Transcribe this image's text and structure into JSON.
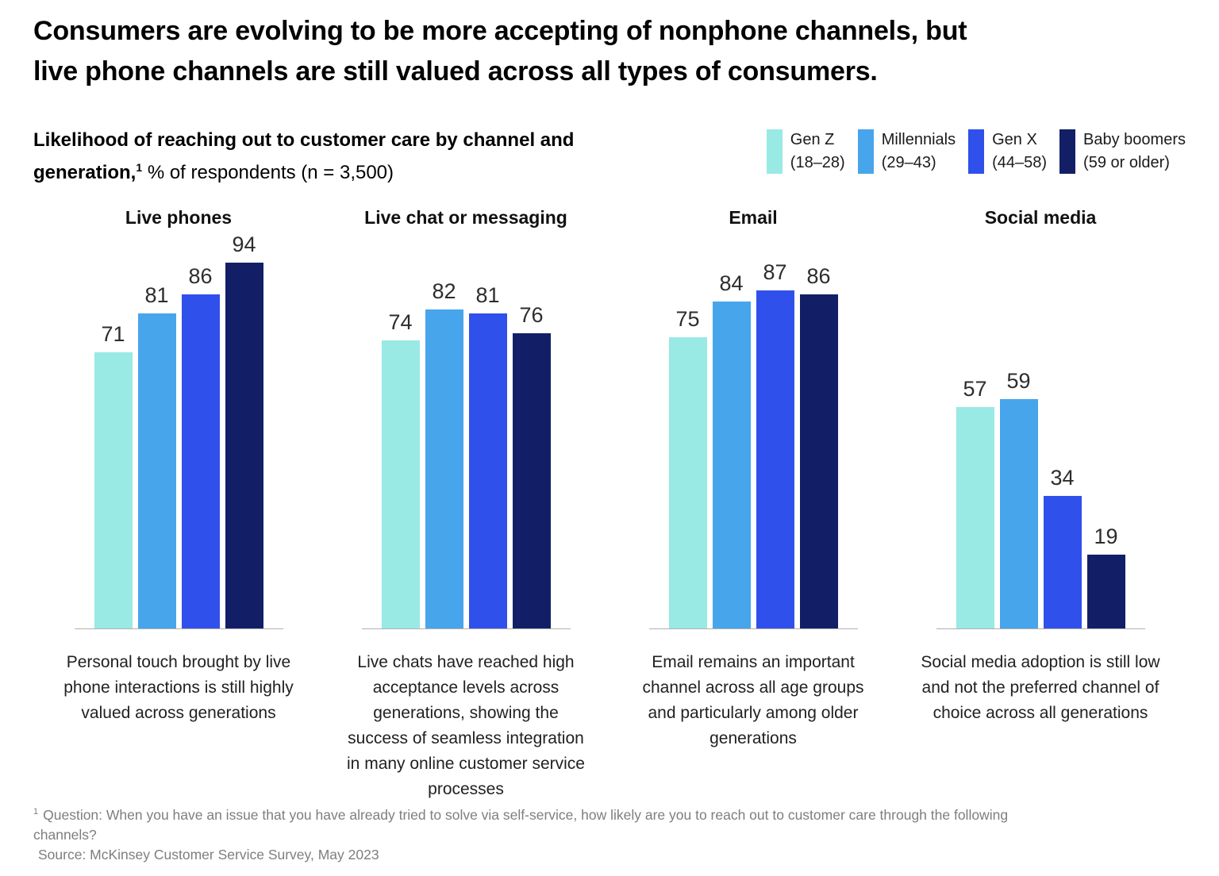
{
  "title": {
    "line1": "Consumers are evolving to be more accepting of nonphone channels, but",
    "line2": "live phone channels are still valued across all types of consumers."
  },
  "subtitle": {
    "bold": "Likelihood of reaching out to customer care by channel and generation,",
    "superscript": "1",
    "rest": "% of respondents (n = 3,500)"
  },
  "legend": {
    "items": [
      {
        "label": "Gen Z",
        "sublabel": "(18–28)",
        "color": "#99E9E4"
      },
      {
        "label": "Millennials",
        "sublabel": "(29–43)",
        "color": "#47A5EC"
      },
      {
        "label": "Gen X",
        "sublabel": "(44–58)",
        "color": "#3050EB"
      },
      {
        "label": "Baby boomers",
        "sublabel": "(59 or older)",
        "color": "#121F66"
      }
    ]
  },
  "chart_data": {
    "type": "bar",
    "title": "Likelihood of reaching out to customer care by channel and generation, % of respondents (n = 3,500)",
    "ylabel": "% of respondents",
    "ylim": [
      0,
      100
    ],
    "grid": false,
    "legend_position": "top-right",
    "series_names": [
      "Gen Z (18–28)",
      "Millennials (29–43)",
      "Gen X (44–58)",
      "Baby boomers (59 or older)"
    ],
    "groups": [
      {
        "title": "Live phones",
        "values": [
          71,
          81,
          86,
          94
        ],
        "caption": "Personal touch brought by live phone interactions is still highly valued across generations"
      },
      {
        "title": "Live chat or messaging",
        "values": [
          74,
          82,
          81,
          76
        ],
        "caption": "Live chats have reached high acceptance levels across generations, showing the success of seamless integration in many online customer service processes"
      },
      {
        "title": "Email",
        "values": [
          75,
          84,
          87,
          86
        ],
        "caption": "Email remains an important channel across all age groups and particularly among older generations"
      },
      {
        "title": "Social media",
        "values": [
          57,
          59,
          34,
          19
        ],
        "caption": "Social media adoption is still low and not the preferred channel of choice across all generations"
      }
    ]
  },
  "footnote": {
    "superscript": "1",
    "question": "Question: When you have an issue that you have already tried to solve via self-service, how likely are you to reach out to customer care through the following channels?",
    "source": "Source: McKinsey Customer Service Survey, May 2023"
  }
}
